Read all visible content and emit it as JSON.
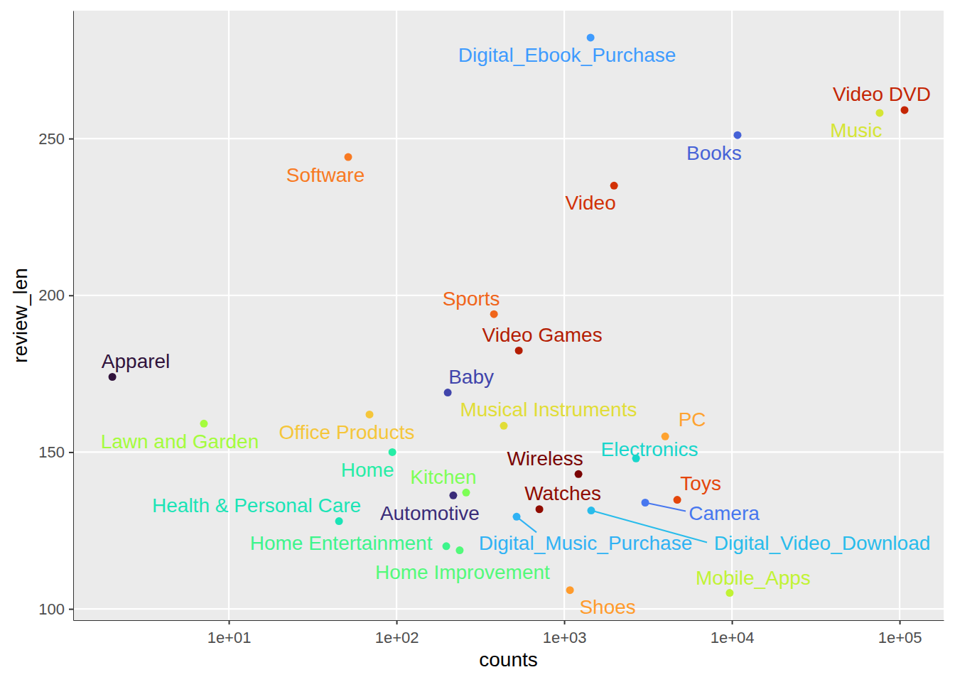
{
  "chart_data": {
    "type": "scatter",
    "x_label": "counts",
    "y_label": "review_len",
    "log": "x",
    "grid": true,
    "xlim": [
      1.18,
      183000
    ],
    "ylim": [
      96.4,
      290.8
    ],
    "xticks": [
      {
        "value": 10,
        "label": "1e+01"
      },
      {
        "value": 100,
        "label": "1e+02"
      },
      {
        "value": 1000,
        "label": "1e+03"
      },
      {
        "value": 10000,
        "label": "1e+04"
      },
      {
        "value": 100000,
        "label": "1e+05"
      }
    ],
    "yticks": [
      100,
      150,
      200,
      250
    ],
    "labels": [
      "Apparel",
      "Automotive",
      "Baby",
      "Books",
      "Camera",
      "Digital_Ebook_Purchase",
      "Digital_Music_Purchase",
      "Digital_Video_Download",
      "Electronics",
      "Health & Personal Care",
      "Home",
      "Home Entertainment",
      "Home Improvement",
      "Kitchen",
      "Lawn and Garden",
      "Mobile_Apps",
      "Music",
      "Musical Instruments",
      "Office Products",
      "PC",
      "Shoes",
      "Software",
      "Sports",
      "Toys",
      "Video",
      "Video DVD",
      "Video Games",
      "Watches",
      "Wireless"
    ],
    "x": [
      2.02,
      218,
      202,
      10800,
      3040,
      1436,
      520,
      1448,
      2680,
      45.4,
      94.4,
      198,
      238,
      260,
      7.1,
      9700,
      76000,
      436,
      69,
      4000,
      1082,
      51.5,
      381,
      4720,
      1982,
      107000,
      536,
      711,
      1216
    ],
    "values": [
      174.0,
      136.2,
      169.0,
      251.1,
      133.9,
      282.2,
      129.4,
      131.4,
      148.0,
      128.0,
      150.0,
      120.0,
      118.7,
      137.1,
      159.1,
      105.1,
      258.2,
      158.4,
      162.0,
      155.0,
      106.0,
      244.1,
      194.0,
      134.8,
      235.0,
      259.1,
      182.4,
      131.8,
      143.0
    ],
    "colors": [
      "#30123b",
      "#3a2c79",
      "#4145ab",
      "#4662d7",
      "#4777ef",
      "#3e9bfe",
      "#2fb2f4",
      "#28bceb",
      "#18d6cb",
      "#1ae4b6",
      "#26eda6",
      "#3df58c",
      "#52fa7a",
      "#7dff56",
      "#a4fc3c",
      "#c1f334",
      "#d5e535",
      "#e1dd37",
      "#f5c63a",
      "#fea331",
      "#ff9b2c",
      "#f87a22",
      "#f0651a",
      "#e4460a",
      "#d23105",
      "#c42503",
      "#b41d02",
      "#900c00",
      "#7a0403"
    ]
  }
}
